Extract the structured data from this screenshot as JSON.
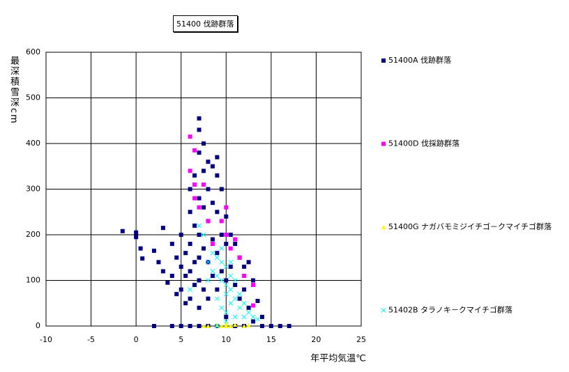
{
  "chart_data": {
    "type": "scatter",
    "title": "51400 伐跡群落",
    "y_label": "最深積雪深cm",
    "x_label": "年平均気温℃",
    "xlim": [
      -10,
      25
    ],
    "ylim": [
      0,
      600
    ],
    "xticks": [
      -10,
      -5,
      0,
      5,
      10,
      15,
      20,
      25
    ],
    "yticks": [
      0,
      100,
      200,
      300,
      400,
      500,
      600
    ],
    "grid": true,
    "series": [
      {
        "name": "51400A 伐跡群落",
        "color": "#000080",
        "marker": "square",
        "x": [
          -1.5,
          0,
          0,
          0.5,
          0.7,
          2,
          2.5,
          3,
          3,
          3.5,
          4,
          4,
          4.5,
          4.5,
          5,
          5,
          5,
          5.5,
          5.5,
          5.5,
          6,
          6,
          6,
          6,
          6,
          6,
          6.5,
          6.5,
          6.5,
          6.5,
          7,
          7,
          7,
          7,
          7,
          7,
          7,
          7,
          7,
          7.5,
          7.5,
          7.5,
          7.5,
          7.5,
          8,
          8,
          8,
          8,
          8,
          8,
          8.5,
          8.5,
          8.5,
          8.5,
          9,
          9,
          9,
          9,
          9,
          9,
          9.5,
          9.5,
          9.5,
          10,
          10,
          10,
          10,
          10.5,
          10.5,
          11,
          11,
          11,
          11.5,
          11.5,
          12,
          12,
          12,
          12.5,
          12.5,
          13,
          13,
          13.5,
          14,
          14,
          15,
          16,
          17,
          2,
          4,
          5
        ],
        "values": [
          208,
          205,
          195,
          170,
          148,
          165,
          140,
          120,
          215,
          95,
          180,
          110,
          150,
          70,
          200,
          130,
          80,
          160,
          110,
          50,
          300,
          250,
          180,
          120,
          60,
          0,
          330,
          220,
          140,
          90,
          455,
          430,
          380,
          280,
          200,
          150,
          100,
          40,
          0,
          400,
          340,
          260,
          170,
          80,
          360,
          300,
          230,
          140,
          60,
          0,
          350,
          270,
          190,
          110,
          370,
          330,
          250,
          160,
          80,
          0,
          300,
          200,
          120,
          240,
          180,
          100,
          20,
          200,
          130,
          180,
          90,
          0,
          150,
          60,
          130,
          80,
          0,
          140,
          40,
          100,
          10,
          55,
          20,
          0,
          0,
          0,
          0,
          0,
          0,
          0
        ]
      },
      {
        "name": "51400D 伐採跡群落",
        "color": "#ff00ff",
        "marker": "square",
        "x": [
          6,
          6.5,
          6,
          6.5,
          7.5,
          7,
          6.5,
          8,
          8.5,
          9.5,
          10,
          10.5,
          11,
          11.5,
          12,
          13,
          13,
          10
        ],
        "values": [
          415,
          385,
          340,
          310,
          310,
          260,
          280,
          230,
          180,
          230,
          200,
          170,
          190,
          150,
          110,
          90,
          45,
          260
        ]
      },
      {
        "name": "51400G ナガバモミジイチゴ－クマイチゴ群落",
        "color": "#ffff00",
        "marker": "triangle",
        "x": [
          8,
          9,
          9.5,
          10,
          10.5,
          11,
          12,
          12.5,
          7.5,
          10
        ],
        "values": [
          0,
          2,
          0,
          5,
          0,
          3,
          0,
          2,
          0,
          0
        ]
      },
      {
        "name": "51402B タラノキ－クマイチゴ群落",
        "color": "#00ffff",
        "marker": "x",
        "x": [
          6,
          7,
          7.5,
          8,
          8,
          8.5,
          9,
          9,
          9,
          9.5,
          9.5,
          9.5,
          10,
          10,
          10,
          10,
          10.5,
          10.5,
          10.5,
          11,
          11,
          11,
          11.5,
          11.5,
          12,
          12,
          12.5,
          13,
          13.5,
          9,
          10,
          8.5,
          9.5,
          10.5
        ],
        "values": [
          80,
          220,
          200,
          140,
          100,
          160,
          150,
          110,
          60,
          140,
          100,
          40,
          130,
          90,
          70,
          30,
          110,
          80,
          50,
          100,
          60,
          20,
          70,
          40,
          50,
          20,
          30,
          20,
          15,
          0,
          10,
          120,
          170,
          140
        ]
      }
    ]
  }
}
